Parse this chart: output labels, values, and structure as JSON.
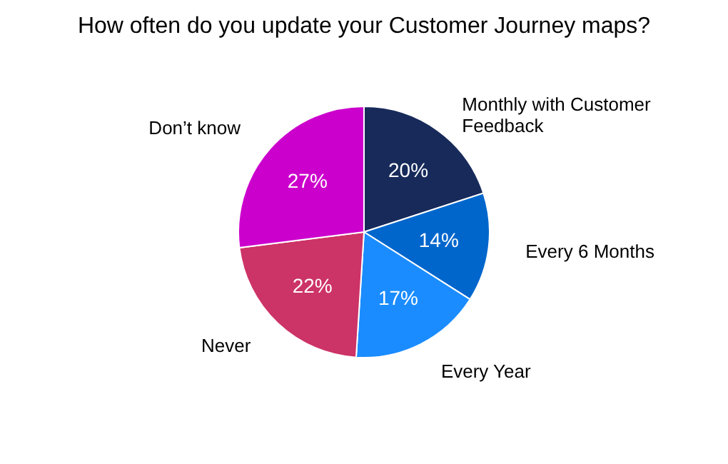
{
  "chart_data": {
    "type": "pie",
    "title": "How often do you update your Customer Journey maps?",
    "categories": [
      "Monthly with Customer Feedback",
      "Every 6 Months",
      "Every Year",
      "Never",
      "Don’t know"
    ],
    "values": [
      20,
      14,
      17,
      22,
      27
    ],
    "value_labels": [
      "20%",
      "14%",
      "17%",
      "22%",
      "27%"
    ],
    "colors": [
      "#172a5a",
      "#0066cc",
      "#1a8cff",
      "#cc3366",
      "#cc00cc"
    ]
  }
}
